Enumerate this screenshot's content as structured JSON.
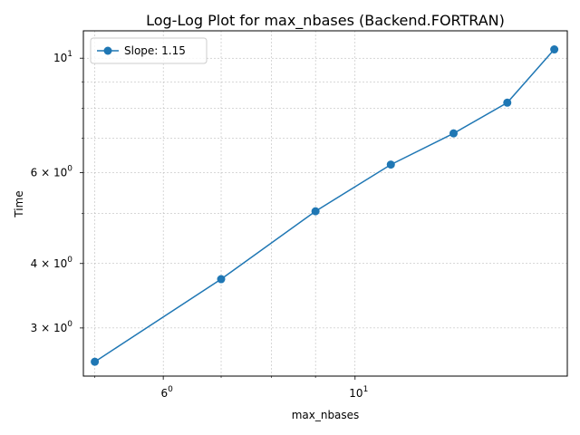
{
  "chart_data": {
    "type": "line",
    "title": "Log-Log Plot for max_nbases (Backend.FORTRAN)",
    "xlabel": "max_nbases",
    "ylabel": "Time",
    "xscale": "log",
    "yscale": "log",
    "xlim": [
      4.85,
      17.6
    ],
    "ylim": [
      2.42,
      11.3
    ],
    "grid": true,
    "legend_position": "top-left",
    "x_major_ticks": [
      {
        "value": 6,
        "base": "6",
        "sup": "0"
      },
      {
        "value": 10,
        "base": "10",
        "sup": "1"
      }
    ],
    "y_major_ticks": [
      {
        "value": 10,
        "base": "10",
        "sup": "1"
      },
      {
        "value": 6,
        "base": "6 × 10",
        "sup": "0"
      },
      {
        "value": 4,
        "base": "4 × 10",
        "sup": "0"
      },
      {
        "value": 3,
        "base": "3 × 10",
        "sup": "0"
      }
    ],
    "x_minor_ticks": [
      5,
      7,
      8,
      9
    ],
    "y_minor_ticks": [
      5,
      7,
      8,
      9
    ],
    "series": [
      {
        "name": "Slope: 1.15",
        "color": "#1f77b4",
        "marker": "circle",
        "x": [
          5,
          7,
          9,
          11,
          13,
          15,
          17
        ],
        "y": [
          2.58,
          3.73,
          5.05,
          6.22,
          7.15,
          8.2,
          10.4
        ]
      }
    ]
  }
}
